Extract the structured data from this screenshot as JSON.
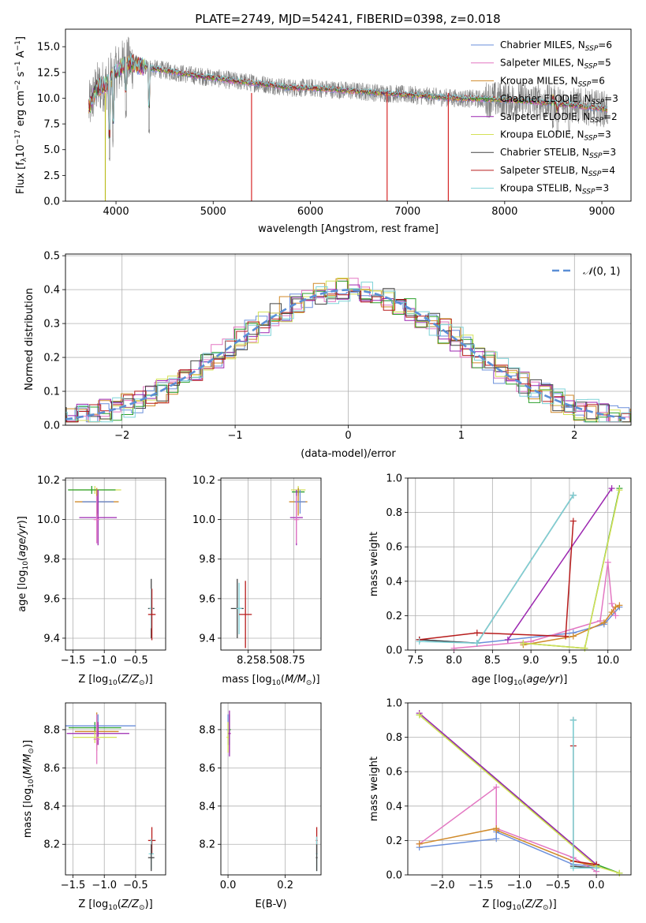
{
  "chart_data": [
    {
      "id": "spectrum",
      "type": "line",
      "title": "PLATE=2749, MJD=54241, FIBERID=0398, z=0.018",
      "xlabel": "wavelength [Angstrom, rest frame]",
      "ylabel": "Flux [f_λ 10^-17 erg cm^-2 s^-1 A^-1]",
      "xlim": [
        3480,
        9300
      ],
      "ylim": [
        0,
        16.7
      ],
      "xticks": [
        4000,
        5000,
        6000,
        7000,
        8000,
        9000
      ],
      "yticks": [
        0.0,
        2.5,
        5.0,
        7.5,
        10.0,
        12.5,
        15.0
      ],
      "grid": false,
      "legend_position": "top-right",
      "data_color": "#808080",
      "data_trend": {
        "x": [
          3720,
          3800,
          3900,
          4000,
          4100,
          4300,
          4500,
          4800,
          5000,
          5200,
          5500,
          5800,
          6000,
          6300,
          6600,
          6900,
          7200,
          7500,
          7800,
          8100,
          8400,
          8700,
          9000,
          9060
        ],
        "y": [
          9.0,
          11.0,
          11.3,
          12.5,
          13.5,
          13.0,
          12.7,
          12.2,
          12.0,
          11.7,
          11.4,
          11.0,
          11.0,
          10.8,
          10.6,
          10.4,
          10.2,
          10.0,
          9.9,
          9.8,
          9.6,
          9.3,
          9.0,
          8.9
        ]
      },
      "dips": [
        {
          "x": 3934,
          "y": 3.5
        },
        {
          "x": 3969,
          "y": 5.0
        },
        {
          "x": 4340,
          "y": 6.5
        },
        {
          "x": 4102,
          "y": 8.0
        },
        {
          "x": 8498,
          "y": 7.0
        },
        {
          "x": 8542,
          "y": 6.0
        },
        {
          "x": 8662,
          "y": 6.5
        }
      ],
      "model_spikes": [
        {
          "x": 3890,
          "y": 0.0,
          "color": "#bcbd22"
        },
        {
          "x": 5395,
          "y": 0.0,
          "color": "#d62728"
        },
        {
          "x": 6790,
          "y": 0.0,
          "color": "#d62728"
        },
        {
          "x": 7420,
          "y": 0.0,
          "color": "#d62728"
        }
      ],
      "series": [
        {
          "name": "Chabrier MILES, N_SSP=6",
          "label_main": "Chabrier MILES, N",
          "label_sub": "SSP",
          "label_tail": "=6",
          "color": "#6a8fdb"
        },
        {
          "name": "Salpeter MILES, N_SSP=5",
          "label_main": "Salpeter MILES, N",
          "label_sub": "SSP",
          "label_tail": "=5",
          "color": "#e377c2"
        },
        {
          "name": "Kroupa MILES, N_SSP=6",
          "label_main": "Kroupa MILES, N",
          "label_sub": "SSP",
          "label_tail": "=6",
          "color": "#d08a2a"
        },
        {
          "name": "Chabrier ELODIE, N_SSP=3",
          "label_main": "Chabrier ELODIE, N",
          "label_sub": "SSP",
          "label_tail": "=3",
          "color": "#2ca02c"
        },
        {
          "name": "Salpeter ELODIE, N_SSP=2",
          "label_main": "Salpeter ELODIE, N",
          "label_sub": "SSP",
          "label_tail": "=2",
          "color": "#9c27b0"
        },
        {
          "name": "Kroupa ELODIE, N_SSP=3",
          "label_main": "Kroupa ELODIE, N",
          "label_sub": "SSP",
          "label_tail": "=3",
          "color": "#d4e157"
        },
        {
          "name": "Chabrier STELIB, N_SSP=3",
          "label_main": "Chabrier STELIB, N",
          "label_sub": "SSP",
          "label_tail": "=3",
          "color": "#444444"
        },
        {
          "name": "Salpeter STELIB, N_SSP=4",
          "label_main": "Salpeter STELIB, N",
          "label_sub": "SSP",
          "label_tail": "=4",
          "color": "#b71c1c"
        },
        {
          "name": "Kroupa STELIB, N_SSP=3",
          "label_main": "Kroupa STELIB, N",
          "label_sub": "SSP",
          "label_tail": "=3",
          "color": "#7fd3d8"
        }
      ]
    },
    {
      "id": "residuals",
      "type": "line",
      "xlabel": "(data-model)/error",
      "ylabel": "Normed distribution",
      "xlim": [
        -2.5,
        2.5
      ],
      "ylim": [
        0.0,
        0.505
      ],
      "xticks": [
        -2,
        -1,
        0,
        1,
        2
      ],
      "yticks": [
        0.0,
        0.1,
        0.2,
        0.3,
        0.4,
        0.5
      ],
      "grid": true,
      "legend_position": "top-right",
      "reference": {
        "name": "N(0,1)",
        "style": "dashed",
        "color": "#5b8fd6"
      },
      "histogram_bin_width": 0.1
    },
    {
      "id": "age_vs_Z",
      "type": "scatter",
      "xlabel": "Z [log10(Z/Z☉)]",
      "ylabel": "age [log10(age/yr)]",
      "xlim": [
        -1.62,
        -0.02
      ],
      "ylim": [
        9.34,
        10.21
      ],
      "xticks": [
        -1.5,
        -1.0,
        -0.5
      ],
      "yticks": [
        9.4,
        9.6,
        9.8,
        10.0,
        10.2
      ],
      "grid": true,
      "points": [
        {
          "x": -1.15,
          "y": 10.15,
          "xerr": 0.42,
          "yerr": 0.02,
          "color": "#d4e157"
        },
        {
          "x": -1.2,
          "y": 10.15,
          "xerr": 0.38,
          "yerr": 0.02,
          "color": "#2ca02c"
        },
        {
          "x": -1.12,
          "y": 10.09,
          "xerr": 0.35,
          "yerr": 0.07,
          "color": "#d08a2a"
        },
        {
          "x": -1.1,
          "y": 10.09,
          "xerr": 0.25,
          "yerr": 0.06,
          "color": "#6a8fdb"
        },
        {
          "x": -1.1,
          "y": 10.01,
          "xerr": 0.3,
          "yerr": 0.14,
          "color": "#9c27b0"
        },
        {
          "x": -1.12,
          "y": 10.0,
          "xerr": 0.05,
          "yerr": 0.12,
          "color": "#e377c2"
        },
        {
          "x": -0.25,
          "y": 9.55,
          "xerr": 0.05,
          "yerr": 0.15,
          "color": "#444444"
        },
        {
          "x": -0.25,
          "y": 9.55,
          "xerr": 0.03,
          "yerr": 0.1,
          "color": "#7fd3d8"
        },
        {
          "x": -0.24,
          "y": 9.52,
          "xerr": 0.06,
          "yerr": 0.13,
          "color": "#b71c1c"
        }
      ]
    },
    {
      "id": "age_vs_mass",
      "type": "scatter",
      "xlabel": "mass [log10(M/M☉)]",
      "ylabel": "",
      "xlim": [
        7.95,
        9.05
      ],
      "ylim": [
        9.34,
        10.21
      ],
      "xticks": [
        8.25,
        8.5,
        8.75
      ],
      "yticks": [
        9.4,
        9.6,
        9.8,
        10.0,
        10.2
      ],
      "grid": true,
      "points": [
        {
          "x": 8.8,
          "y": 10.15,
          "xerr": 0.08,
          "yerr": 0.02,
          "color": "#d4e157"
        },
        {
          "x": 8.8,
          "y": 10.14,
          "xerr": 0.07,
          "yerr": 0.02,
          "color": "#2ca02c"
        },
        {
          "x": 8.8,
          "y": 10.09,
          "xerr": 0.1,
          "yerr": 0.07,
          "color": "#d08a2a"
        },
        {
          "x": 8.82,
          "y": 10.09,
          "xerr": 0.06,
          "yerr": 0.06,
          "color": "#6a8fdb"
        },
        {
          "x": 8.78,
          "y": 10.01,
          "xerr": 0.07,
          "yerr": 0.14,
          "color": "#9c27b0"
        },
        {
          "x": 8.78,
          "y": 10.0,
          "xerr": 0.03,
          "yerr": 0.12,
          "color": "#e377c2"
        },
        {
          "x": 8.13,
          "y": 9.55,
          "xerr": 0.07,
          "yerr": 0.15,
          "color": "#444444"
        },
        {
          "x": 8.15,
          "y": 9.55,
          "xerr": 0.03,
          "yerr": 0.13,
          "color": "#7fd3d8"
        },
        {
          "x": 8.22,
          "y": 9.52,
          "xerr": 0.07,
          "yerr": 0.17,
          "color": "#b71c1c"
        }
      ]
    },
    {
      "id": "weight_vs_age",
      "type": "line",
      "xlabel": "age [log10(age/yr)]",
      "ylabel": "mass weight",
      "xlim": [
        7.4,
        10.3
      ],
      "ylim": [
        0.0,
        1.0
      ],
      "xticks": [
        7.5,
        8.0,
        8.5,
        9.0,
        9.5,
        10.0
      ],
      "yticks": [
        0.0,
        0.2,
        0.4,
        0.6,
        0.8,
        1.0
      ],
      "grid": true,
      "series": [
        {
          "name": "Chabrier MILES",
          "color": "#6a8fdb",
          "x": [
            7.55,
            8.3,
            9.55,
            9.95,
            10.15
          ],
          "y": [
            0.06,
            0.04,
            0.1,
            0.15,
            0.25
          ]
        },
        {
          "name": "Salpeter MILES",
          "color": "#e377c2",
          "x": [
            8.0,
            9.0,
            9.9,
            10.0,
            10.05,
            10.1
          ],
          "y": [
            0.01,
            0.05,
            0.17,
            0.51,
            0.27,
            0.2
          ]
        },
        {
          "name": "Kroupa MILES",
          "color": "#d08a2a",
          "x": [
            8.9,
            9.55,
            9.95,
            10.05,
            10.1,
            10.15
          ],
          "y": [
            0.03,
            0.08,
            0.16,
            0.22,
            0.25,
            0.26
          ]
        },
        {
          "name": "Chabrier ELODIE",
          "color": "#2ca02c",
          "x": [
            8.9,
            9.7,
            10.15
          ],
          "y": [
            0.04,
            0.01,
            0.94
          ]
        },
        {
          "name": "Salpeter ELODIE",
          "color": "#9c27b0",
          "x": [
            8.7,
            10.05
          ],
          "y": [
            0.06,
            0.94
          ]
        },
        {
          "name": "Kroupa ELODIE",
          "color": "#d4e157",
          "x": [
            8.9,
            9.7,
            10.15
          ],
          "y": [
            0.04,
            0.01,
            0.93
          ]
        },
        {
          "name": "Chabrier STELIB",
          "color": "#444444",
          "x": [
            7.55,
            8.3,
            9.55
          ],
          "y": [
            0.06,
            0.04,
            0.9
          ]
        },
        {
          "name": "Salpeter STELIB",
          "color": "#b71c1c",
          "x": [
            7.55,
            8.3,
            9.45,
            9.55
          ],
          "y": [
            0.06,
            0.1,
            0.08,
            0.75
          ]
        },
        {
          "name": "Kroupa STELIB",
          "color": "#7fd3d8",
          "x": [
            7.55,
            8.3,
            9.55
          ],
          "y": [
            0.05,
            0.04,
            0.9
          ]
        }
      ]
    },
    {
      "id": "mass_vs_Z",
      "type": "scatter",
      "xlabel": "Z [log10(Z/Z☉)]",
      "ylabel": "mass [log10(M/M☉)]",
      "xlim": [
        -1.62,
        -0.02
      ],
      "ylim": [
        8.04,
        8.94
      ],
      "xticks": [
        -1.5,
        -1.0,
        -0.5
      ],
      "yticks": [
        8.2,
        8.4,
        8.6,
        8.8
      ],
      "grid": true,
      "points": [
        {
          "x": -1.15,
          "y": 8.81,
          "xerr": 0.42,
          "yerr": 0.03,
          "color": "#2ca02c"
        },
        {
          "x": -1.1,
          "y": 8.82,
          "xerr": 0.6,
          "yerr": 0.06,
          "color": "#6a8fdb"
        },
        {
          "x": -1.12,
          "y": 8.79,
          "xerr": 0.35,
          "yerr": 0.1,
          "color": "#d08a2a"
        },
        {
          "x": -1.1,
          "y": 8.78,
          "xerr": 0.5,
          "yerr": 0.06,
          "color": "#9c27b0"
        },
        {
          "x": -1.15,
          "y": 8.76,
          "xerr": 0.35,
          "yerr": 0.03,
          "color": "#d4e157"
        },
        {
          "x": -1.12,
          "y": 8.75,
          "xerr": 0.05,
          "yerr": 0.13,
          "color": "#e377c2"
        },
        {
          "x": -0.24,
          "y": 8.22,
          "xerr": 0.06,
          "yerr": 0.07,
          "color": "#b71c1c"
        },
        {
          "x": -0.25,
          "y": 8.15,
          "xerr": 0.04,
          "yerr": 0.08,
          "color": "#7fd3d8"
        },
        {
          "x": -0.25,
          "y": 8.13,
          "xerr": 0.05,
          "yerr": 0.07,
          "color": "#444444"
        }
      ]
    },
    {
      "id": "mass_vs_EBV",
      "type": "scatter",
      "xlabel": "E(B-V)",
      "ylabel": "",
      "xlim": [
        -0.025,
        0.325
      ],
      "ylim": [
        8.04,
        8.94
      ],
      "xticks": [
        0.0,
        0.2
      ],
      "yticks": [
        8.2,
        8.4,
        8.6,
        8.8
      ],
      "grid": true,
      "points": [
        {
          "x": 0.0,
          "y": 8.8,
          "xerr": 0.005,
          "yerr": 0.08,
          "color": "#6a8fdb"
        },
        {
          "x": 0.005,
          "y": 8.8,
          "xerr": 0.005,
          "yerr": 0.08,
          "color": "#2ca02c"
        },
        {
          "x": 0.005,
          "y": 8.78,
          "xerr": 0.005,
          "yerr": 0.1,
          "color": "#e377c2"
        },
        {
          "x": 0.0,
          "y": 8.76,
          "xerr": 0.005,
          "yerr": 0.08,
          "color": "#d4e157"
        },
        {
          "x": 0.005,
          "y": 8.78,
          "xerr": 0.004,
          "yerr": 0.12,
          "color": "#9c27b0"
        },
        {
          "x": 0.31,
          "y": 8.22,
          "xerr": 0.003,
          "yerr": 0.07,
          "color": "#b71c1c"
        },
        {
          "x": 0.31,
          "y": 8.15,
          "xerr": 0.003,
          "yerr": 0.09,
          "color": "#7fd3d8"
        },
        {
          "x": 0.31,
          "y": 8.13,
          "xerr": 0.003,
          "yerr": 0.07,
          "color": "#444444"
        }
      ]
    },
    {
      "id": "weight_vs_Z",
      "type": "line",
      "xlabel": "Z [log10(Z/Z☉)]",
      "ylabel": "mass weight",
      "xlim": [
        -2.45,
        0.45
      ],
      "ylim": [
        0.0,
        1.0
      ],
      "xticks": [
        -2.0,
        -1.5,
        -1.0,
        -0.5,
        0.0
      ],
      "yticks": [
        0.0,
        0.2,
        0.4,
        0.6,
        0.8,
        1.0
      ],
      "grid": true,
      "series": [
        {
          "name": "Chabrier MILES",
          "color": "#6a8fdb",
          "x": [
            -2.3,
            -1.3,
            -1.3,
            -0.3,
            0.0
          ],
          "y": [
            0.16,
            0.21,
            0.25,
            0.06,
            0.05
          ]
        },
        {
          "name": "Salpeter MILES",
          "color": "#e377c2",
          "x": [
            -2.3,
            -1.3,
            -1.3,
            -0.3,
            0.0
          ],
          "y": [
            0.18,
            0.51,
            0.27,
            0.1,
            0.02
          ]
        },
        {
          "name": "Kroupa MILES",
          "color": "#d08a2a",
          "x": [
            -2.3,
            -1.3,
            -1.3,
            -0.3,
            0.0
          ],
          "y": [
            0.18,
            0.27,
            0.26,
            0.08,
            0.05
          ]
        },
        {
          "name": "Chabrier ELODIE",
          "color": "#2ca02c",
          "x": [
            -2.3,
            0.0,
            0.3
          ],
          "y": [
            0.93,
            0.06,
            0.01
          ]
        },
        {
          "name": "Salpeter ELODIE",
          "color": "#9c27b0",
          "x": [
            -2.3,
            0.0
          ],
          "y": [
            0.94,
            0.06
          ]
        },
        {
          "name": "Kroupa ELODIE",
          "color": "#d4e157",
          "x": [
            -2.3,
            0.0,
            0.3
          ],
          "y": [
            0.93,
            0.05,
            0.01
          ]
        },
        {
          "name": "Chabrier STELIB",
          "color": "#444444",
          "x": [
            -0.3,
            -0.3,
            0.0
          ],
          "y": [
            0.9,
            0.05,
            0.04
          ]
        },
        {
          "name": "Salpeter STELIB",
          "color": "#b71c1c",
          "x": [
            -0.3,
            -0.3,
            0.0
          ],
          "y": [
            0.75,
            0.08,
            0.06
          ]
        },
        {
          "name": "Kroupa STELIB",
          "color": "#7fd3d8",
          "x": [
            -0.3,
            -0.3,
            0.0
          ],
          "y": [
            0.9,
            0.04,
            0.04
          ]
        }
      ]
    }
  ]
}
